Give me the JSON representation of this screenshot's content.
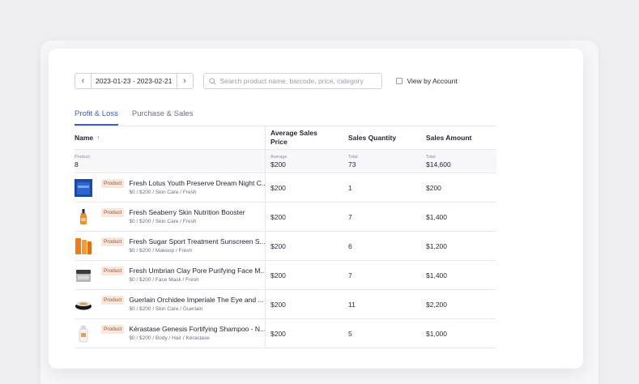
{
  "toolbar": {
    "date_range": "2023-01-23 - 2023-02-21",
    "search_placeholder": "Search product name, barcode, price, category",
    "view_by_account_label": "View by Account"
  },
  "tabs": [
    {
      "label": "Profit & Loss",
      "active": true
    },
    {
      "label": "Purchase & Sales",
      "active": false
    }
  ],
  "table": {
    "headers": {
      "name": "Name",
      "avg_price": "Average Sales Price",
      "quantity": "Sales Quantity",
      "amount": "Sales Amount"
    },
    "summary": {
      "product_label": "Product",
      "product_value": "8",
      "avg_label": "Average",
      "avg_value": "$200",
      "qty_label": "Total",
      "qty_value": "73",
      "amt_label": "Total",
      "amt_value": "$14,600"
    },
    "rows": [
      {
        "badge": "Product",
        "name": "Fresh Lotus Youth Preserve Dream Night C...",
        "meta": "$0 / $200 / Skin Care / Fresh",
        "avg": "$200",
        "qty": "1",
        "amount": "$200",
        "thumb": "blue-jar"
      },
      {
        "badge": "Product",
        "name": "Fresh Seaberry Skin Nutrition Booster",
        "meta": "$0 / $200 / Skin Care / Fresh",
        "avg": "$200",
        "qty": "7",
        "amount": "$1,400",
        "thumb": "orange-dropper-bottle"
      },
      {
        "badge": "Product",
        "name": "Fresh Sugar Sport Treatment Sunscreen S...",
        "meta": "$0 / $200 / Makeup / Fresh",
        "avg": "$200",
        "qty": "6",
        "amount": "$1,200",
        "thumb": "orange-tubes"
      },
      {
        "badge": "Product",
        "name": "Fresh Umbrian Clay Pore Purifying Face M...",
        "meta": "$0 / $200 / Face Mask / Fresh",
        "avg": "$200",
        "qty": "7",
        "amount": "$1,400",
        "thumb": "grey-jar"
      },
      {
        "badge": "Product",
        "name": "Guerlain Orchidee Imperiale The Eye and ...",
        "meta": "$0 / $200 / Skin Care / Guerlain",
        "avg": "$200",
        "qty": "11",
        "amount": "$2,200",
        "thumb": "dark-round-jar"
      },
      {
        "badge": "Product",
        "name": "Kérastase Genesis Fortifying Shampoo - N...",
        "meta": "$0 / $200 / Body / Hair / Kérastase",
        "avg": "$200",
        "qty": "5",
        "amount": "$1,000",
        "thumb": "white-bottle"
      }
    ]
  },
  "colors": {
    "accent": "#3f5bd6",
    "badge_bg": "#fbe6d9",
    "badge_text": "#8a5a3e"
  }
}
